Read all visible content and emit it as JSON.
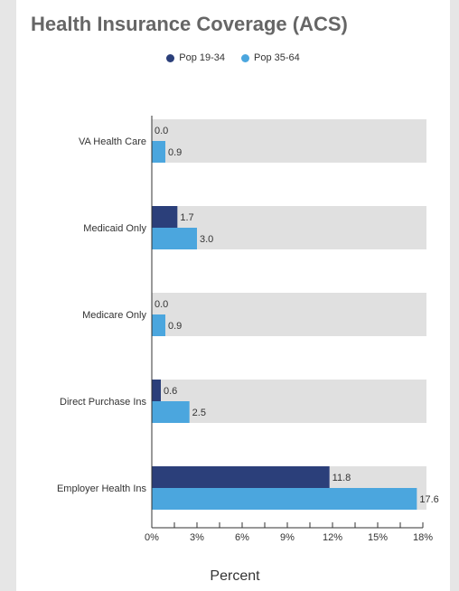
{
  "chart_data": {
    "type": "bar",
    "orientation": "horizontal",
    "title": "Health Insurance Coverage (ACS)",
    "xlabel": "Percent",
    "ylabel": "",
    "categories": [
      "VA Health Care",
      "Medicaid Only",
      "Medicare Only",
      "Direct Purchase Ins",
      "Employer Health Ins"
    ],
    "series": [
      {
        "name": "Pop 19-34",
        "color": "#2b3f7a",
        "values": [
          0.0,
          1.7,
          0.0,
          0.6,
          11.8
        ]
      },
      {
        "name": "Pop 35-64",
        "color": "#4ba6de",
        "values": [
          0.9,
          3.0,
          0.9,
          2.5,
          17.6
        ]
      }
    ],
    "xlim": [
      0,
      18
    ],
    "xticks": [
      "0%",
      "3%",
      "6%",
      "9%",
      "12%",
      "15%",
      "18%"
    ],
    "legend_position": "top-center",
    "background_band_color": "#e0e0e0"
  }
}
